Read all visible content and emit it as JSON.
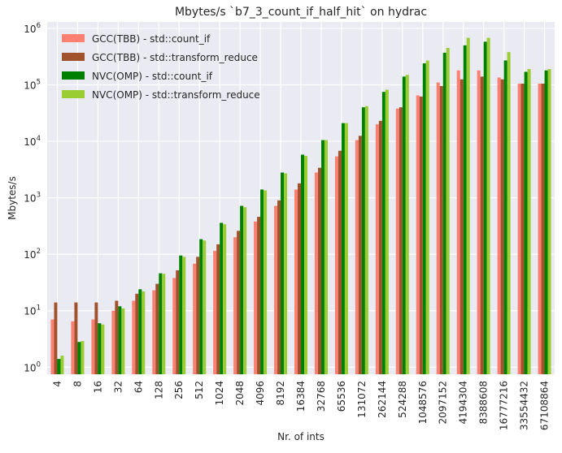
{
  "chart_data": {
    "type": "bar",
    "title": "Mbytes/s `b7_3_count_if_half_hit` on hydrac",
    "xlabel": "Nr. of ints",
    "ylabel": "Mbytes/s",
    "yscale": "log",
    "ylim": [
      0.75,
      1300000
    ],
    "yticks": [
      {
        "value": 1,
        "base": "10",
        "exp": "0"
      },
      {
        "value": 10,
        "base": "10",
        "exp": "1"
      },
      {
        "value": 100,
        "base": "10",
        "exp": "2"
      },
      {
        "value": 1000,
        "base": "10",
        "exp": "3"
      },
      {
        "value": 10000,
        "base": "10",
        "exp": "4"
      },
      {
        "value": 100000,
        "base": "10",
        "exp": "5"
      },
      {
        "value": 1000000,
        "base": "10",
        "exp": "6"
      }
    ],
    "grid": true,
    "legend_position": "top-left",
    "categories": [
      "4",
      "8",
      "16",
      "32",
      "64",
      "128",
      "256",
      "512",
      "1024",
      "2048",
      "4096",
      "8192",
      "16384",
      "32768",
      "65536",
      "131072",
      "262144",
      "524288",
      "1048576",
      "2097152",
      "4194304",
      "8388608",
      "16777216",
      "33554432",
      "67108864"
    ],
    "series": [
      {
        "name": "GCC(TBB) - std::count_if",
        "color": "#fa8072",
        "values": [
          7,
          6.5,
          7,
          10,
          15,
          23,
          38,
          68,
          115,
          200,
          380,
          720,
          1400,
          2800,
          5400,
          10500,
          20000,
          38000,
          65000,
          110000,
          180000,
          180000,
          135000,
          105000,
          105000
        ]
      },
      {
        "name": "GCC(TBB) - std::transform_reduce",
        "color": "#a0522d",
        "values": [
          14,
          14,
          14,
          15,
          20,
          30,
          52,
          90,
          150,
          260,
          460,
          900,
          1800,
          3400,
          6800,
          12500,
          23000,
          40000,
          62000,
          95000,
          125000,
          140000,
          125000,
          105000,
          105000
        ]
      },
      {
        "name": "NVC(OMP) - std::count_if",
        "color": "#008000",
        "values": [
          1.4,
          2.8,
          6,
          12,
          24,
          46,
          95,
          185,
          360,
          720,
          1400,
          2800,
          5800,
          10500,
          21000,
          40000,
          75000,
          140000,
          240000,
          370000,
          500000,
          580000,
          270000,
          170000,
          180000
        ]
      },
      {
        "name": "NVC(OMP) - std::transform_reduce",
        "color": "#9acd32",
        "values": [
          1.6,
          2.9,
          5.7,
          11,
          22,
          45,
          90,
          175,
          340,
          680,
          1350,
          2700,
          5500,
          10500,
          21000,
          42000,
          82000,
          150000,
          270000,
          450000,
          680000,
          680000,
          380000,
          190000,
          190000
        ]
      }
    ]
  }
}
